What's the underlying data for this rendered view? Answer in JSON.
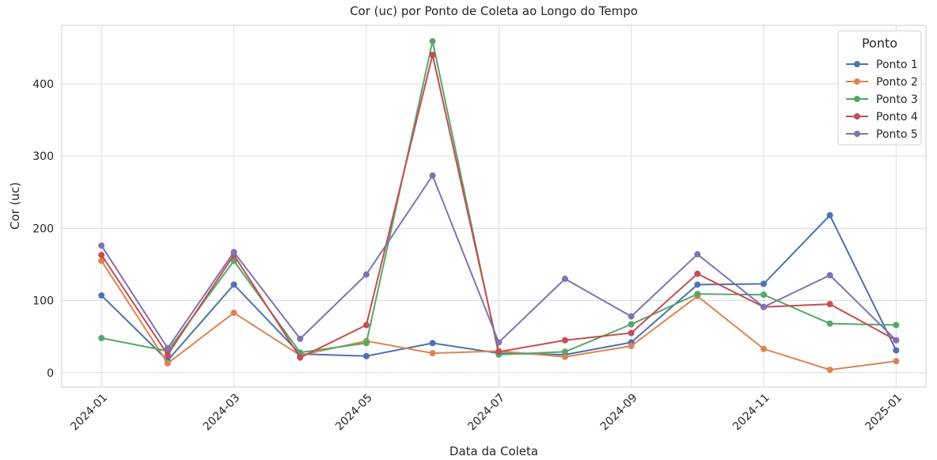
{
  "chart_data": {
    "type": "line",
    "title": "Cor (uc) por Ponto de Coleta ao Longo do Tempo",
    "x_label": "Data da Coleta",
    "y_label": "Cor (uc)",
    "x": [
      "2024-01",
      "2024-02",
      "2024-03",
      "2024-04",
      "2024-05",
      "2024-06",
      "2024-07",
      "2024-08",
      "2024-09",
      "2024-10",
      "2024-11",
      "2024-12",
      "2025-01"
    ],
    "xticks": [
      "2024-01",
      "2024-03",
      "2024-05",
      "2024-07",
      "2024-09",
      "2024-11",
      "2025-01"
    ],
    "ylim": [
      -20,
      481
    ],
    "yticks": [
      0,
      100,
      200,
      300,
      400
    ],
    "grid": true,
    "legend": {
      "title": "Ponto",
      "position": "upper right"
    },
    "series": [
      {
        "name": "Ponto 1",
        "color": "#4c72b0",
        "values": [
          107,
          17,
          122,
          26,
          23,
          41,
          27,
          25,
          42,
          122,
          123,
          218,
          31
        ]
      },
      {
        "name": "Ponto 2",
        "color": "#dd8452",
        "values": [
          155,
          13,
          83,
          24,
          44,
          27,
          30,
          22,
          37,
          106,
          33,
          4,
          16
        ]
      },
      {
        "name": "Ponto 3",
        "color": "#55a868",
        "values": [
          48,
          30,
          155,
          28,
          41,
          459,
          25,
          29,
          67,
          109,
          108,
          68,
          66
        ]
      },
      {
        "name": "Ponto 4",
        "color": "#c44e52",
        "values": [
          163,
          25,
          163,
          21,
          66,
          440,
          29,
          45,
          55,
          137,
          91,
          95,
          45
        ]
      },
      {
        "name": "Ponto 5",
        "color": "#8172b3",
        "values": [
          176,
          34,
          167,
          47,
          136,
          273,
          42,
          130,
          78,
          164,
          91,
          135,
          45
        ]
      }
    ]
  }
}
